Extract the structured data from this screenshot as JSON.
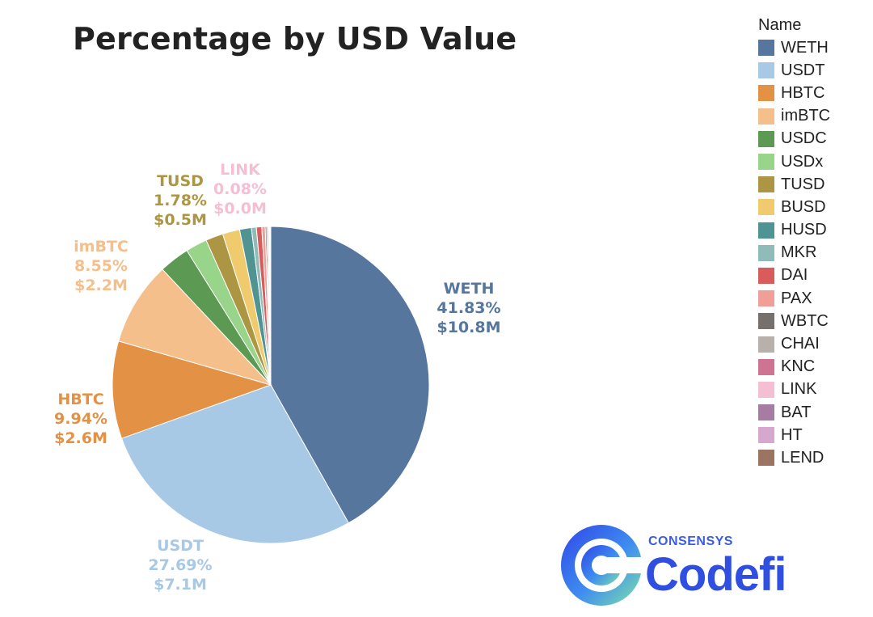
{
  "chart_data": {
    "type": "pie",
    "title": "Percentage by USD Value",
    "legend_title": "Name",
    "legend_position": "right",
    "slices": [
      {
        "name": "WETH",
        "percent": 41.83,
        "value_label": "$10.8M",
        "color": "#56769e"
      },
      {
        "name": "USDT",
        "percent": 27.69,
        "value_label": "$7.1M",
        "color": "#a8c9e6"
      },
      {
        "name": "HBTC",
        "percent": 9.94,
        "value_label": "$2.6M",
        "color": "#e39144"
      },
      {
        "name": "imBTC",
        "percent": 8.55,
        "value_label": "$2.2M",
        "color": "#f4bf8a"
      },
      {
        "name": "USDC",
        "percent": 3.1,
        "color": "#5c9a53"
      },
      {
        "name": "USDx",
        "percent": 2.2,
        "color": "#98d48a"
      },
      {
        "name": "TUSD",
        "percent": 1.78,
        "value_label": "$0.5M",
        "color": "#ad9643"
      },
      {
        "name": "BUSD",
        "percent": 1.75,
        "color": "#efcb6d"
      },
      {
        "name": "HUSD",
        "percent": 1.2,
        "color": "#4f9392"
      },
      {
        "name": "MKR",
        "percent": 0.5,
        "color": "#8fbcb8"
      },
      {
        "name": "DAI",
        "percent": 0.55,
        "color": "#d95b5b"
      },
      {
        "name": "PAX",
        "percent": 0.35,
        "color": "#f09f98"
      },
      {
        "name": "WBTC",
        "percent": 0.15,
        "color": "#76706c"
      },
      {
        "name": "CHAI",
        "percent": 0.15,
        "color": "#b8b0ab"
      },
      {
        "name": "KNC",
        "percent": 0.08,
        "color": "#ce7392"
      },
      {
        "name": "LINK",
        "percent": 0.08,
        "value_label": "$0.0M",
        "color": "#f4bfd3"
      },
      {
        "name": "BAT",
        "percent": 0.04,
        "color": "#a67ca3"
      },
      {
        "name": "HT",
        "percent": 0.03,
        "color": "#d7a8cd"
      },
      {
        "name": "LEND",
        "percent": 0.03,
        "color": "#9b7561"
      }
    ],
    "labels": [
      {
        "name": "WETH",
        "percent_text": "41.83%",
        "value_text": "$10.8M",
        "color": "#56769e"
      },
      {
        "name": "USDT",
        "percent_text": "27.69%",
        "value_text": "$7.1M",
        "color": "#a8c9e6"
      },
      {
        "name": "HBTC",
        "percent_text": "9.94%",
        "value_text": "$2.6M",
        "color": "#e39144"
      },
      {
        "name": "imBTC",
        "percent_text": "8.55%",
        "value_text": "$2.2M",
        "color": "#f4bf8a"
      },
      {
        "name": "TUSD",
        "percent_text": "1.78%",
        "value_text": "$0.5M",
        "color": "#ad9643"
      },
      {
        "name": "LINK",
        "percent_text": "0.08%",
        "value_text": "$0.0M",
        "color": "#f4bfd3"
      }
    ]
  },
  "logo": {
    "brand": "CONSENSYS",
    "product": "Codefi"
  }
}
